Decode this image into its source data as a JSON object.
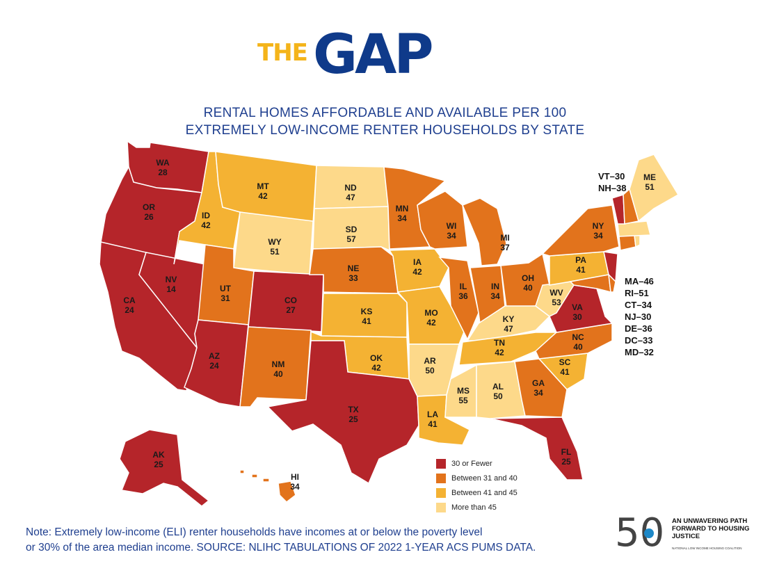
{
  "title": {
    "the": "THE",
    "gap": "GAP"
  },
  "subtitle": {
    "line1": "RENTAL HOMES AFFORDABLE AND AVAILABLE PER 100",
    "line2": "EXTREMELY LOW-INCOME RENTER HOUSEHOLDS BY STATE"
  },
  "colors": {
    "c30": "#b5252a",
    "c31_40": "#e2731c",
    "c41_45": "#f4b233",
    "c45plus": "#fdd98a"
  },
  "legend": [
    {
      "label": "30 or Fewer",
      "color": "#b5252a"
    },
    {
      "label": "Between 31 and 40",
      "color": "#e2731c"
    },
    {
      "label": "Between 41 and 45",
      "color": "#f4b233"
    },
    {
      "label": "More than 45",
      "color": "#fdd98a"
    }
  ],
  "states": {
    "WA": {
      "abbr": "WA",
      "value": "28"
    },
    "OR": {
      "abbr": "OR",
      "value": "26"
    },
    "CA": {
      "abbr": "CA",
      "value": "24"
    },
    "NV": {
      "abbr": "NV",
      "value": "14"
    },
    "ID": {
      "abbr": "ID",
      "value": "42"
    },
    "MT": {
      "abbr": "MT",
      "value": "42"
    },
    "WY": {
      "abbr": "WY",
      "value": "51"
    },
    "UT": {
      "abbr": "UT",
      "value": "31"
    },
    "AZ": {
      "abbr": "AZ",
      "value": "24"
    },
    "CO": {
      "abbr": "CO",
      "value": "27"
    },
    "NM": {
      "abbr": "NM",
      "value": "40"
    },
    "ND": {
      "abbr": "ND",
      "value": "47"
    },
    "SD": {
      "abbr": "SD",
      "value": "57"
    },
    "NE": {
      "abbr": "NE",
      "value": "33"
    },
    "KS": {
      "abbr": "KS",
      "value": "41"
    },
    "OK": {
      "abbr": "OK",
      "value": "42"
    },
    "TX": {
      "abbr": "TX",
      "value": "25"
    },
    "MN": {
      "abbr": "MN",
      "value": "34"
    },
    "IA": {
      "abbr": "IA",
      "value": "42"
    },
    "MO": {
      "abbr": "MO",
      "value": "42"
    },
    "AR": {
      "abbr": "AR",
      "value": "50"
    },
    "LA": {
      "abbr": "LA",
      "value": "41"
    },
    "WI": {
      "abbr": "WI",
      "value": "34"
    },
    "IL": {
      "abbr": "IL",
      "value": "36"
    },
    "MI": {
      "abbr": "MI",
      "value": "37"
    },
    "IN": {
      "abbr": "IN",
      "value": "34"
    },
    "OH": {
      "abbr": "OH",
      "value": "40"
    },
    "KY": {
      "abbr": "KY",
      "value": "47"
    },
    "TN": {
      "abbr": "TN",
      "value": "42"
    },
    "MS": {
      "abbr": "MS",
      "value": "55"
    },
    "AL": {
      "abbr": "AL",
      "value": "50"
    },
    "GA": {
      "abbr": "GA",
      "value": "34"
    },
    "FL": {
      "abbr": "FL",
      "value": "25"
    },
    "SC": {
      "abbr": "SC",
      "value": "41"
    },
    "NC": {
      "abbr": "NC",
      "value": "40"
    },
    "VA": {
      "abbr": "VA",
      "value": "30"
    },
    "WV": {
      "abbr": "WV",
      "value": "53"
    },
    "PA": {
      "abbr": "PA",
      "value": "41"
    },
    "NY": {
      "abbr": "NY",
      "value": "34"
    },
    "ME": {
      "abbr": "ME",
      "value": "51"
    },
    "AK": {
      "abbr": "AK",
      "value": "25"
    },
    "HI": {
      "abbr": "HI",
      "value": "34"
    }
  },
  "side_labels": {
    "vt": "VT–30",
    "nh": "NH–38",
    "ma": "MA–46",
    "ri": "RI–51",
    "ct": "CT–34",
    "nj": "NJ–30",
    "de": "DE–36",
    "dc": "DC–33",
    "md": "MD–32"
  },
  "note": {
    "line1": "Note: Extremely low-income (ELI) renter households have incomes at or below the poverty level",
    "line2": "or 30% of the area median income. SOURCE: NLIHC TABULATIONS OF 2022 1-YEAR ACS PUMS DATA."
  },
  "logo": {
    "number": "50",
    "text": "AN UNWAVERING PATH FORWARD TO HOUSING JUSTICE",
    "org": "NATIONAL LOW INCOME HOUSING COALITION"
  }
}
